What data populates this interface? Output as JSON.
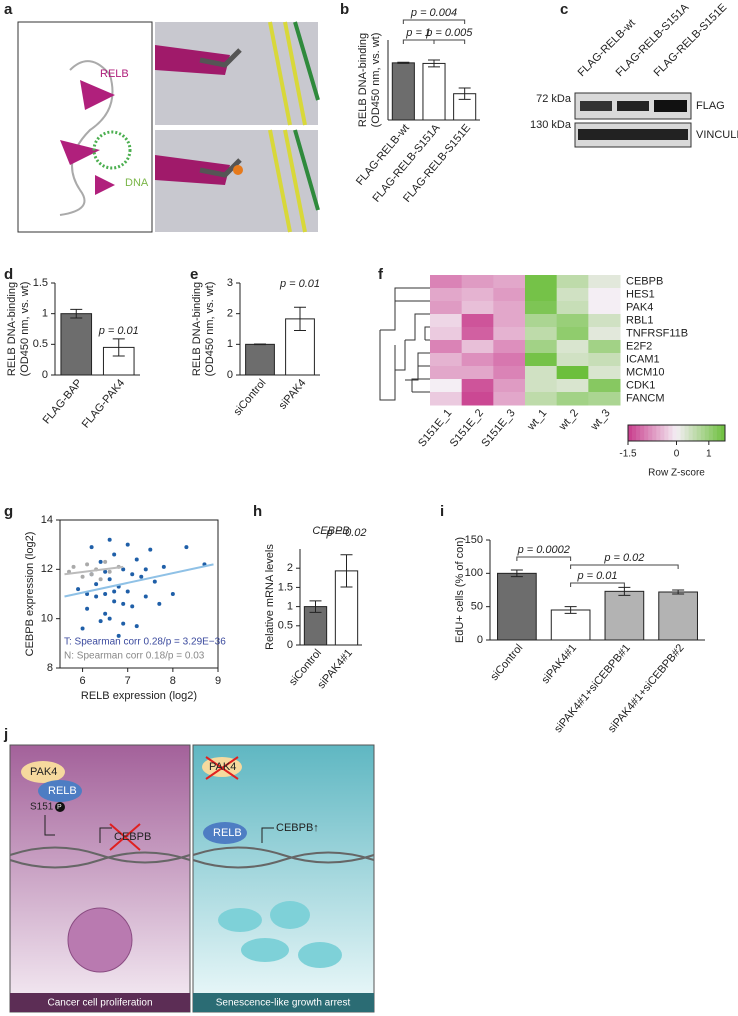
{
  "panels": [
    "a",
    "b",
    "c",
    "d",
    "e",
    "f",
    "g",
    "h",
    "i",
    "j"
  ],
  "panel_a": {
    "labels": [
      "RELB",
      "DNA"
    ]
  },
  "panel_c": {
    "lanes": [
      "FLAG-RELB-wt",
      "FLAG-RELB-S151A",
      "FLAG-RELB-S151E"
    ],
    "markers": [
      "72 kDa",
      "130 kDa"
    ],
    "bands": [
      "FLAG",
      "VINCULIN"
    ]
  },
  "panel_j": {
    "left": {
      "labels": [
        "PAK4",
        "RELB",
        "S151",
        "P",
        "CEBPB"
      ],
      "caption": "Cancer cell proliferation"
    },
    "right": {
      "labels": [
        "PAK4",
        "RELB",
        "CEBPB↑"
      ],
      "caption": "Senescence-like growth arrest"
    }
  },
  "chart_data": [
    {
      "type": "bar",
      "ylabel": [
        "RELB DNA-binding",
        "(OD450 nm, vs. wt)"
      ],
      "categories": [
        "FLAG-RELB-wt",
        "FLAG-RELB-S151A",
        "FLAG-RELB-S151E"
      ],
      "values": [
        1,
        0.99,
        0.46
      ],
      "errors": [
        0.01,
        0.06,
        0.1
      ],
      "colors": [
        "#6d6d6d",
        "#ffffff",
        "#ffffff"
      ],
      "ylim": [
        0,
        1.4
      ],
      "annotations": [
        "p = 0.004",
        "p = 1",
        "p = 0.005"
      ]
    },
    {
      "type": "bar",
      "ylabel": [
        "RELB DNA-binding",
        "(OD450 nm, vs. wt)"
      ],
      "categories": [
        "FLAG-BAP",
        "FLAG-PAK4"
      ],
      "values": [
        1,
        0.45
      ],
      "errors": [
        0.07,
        0.14
      ],
      "colors": [
        "#6d6d6d",
        "#ffffff"
      ],
      "ylim": [
        0,
        1.5
      ],
      "yticks": [
        0,
        0.5,
        1,
        1.5
      ],
      "annotations": [
        "p = 0.01"
      ]
    },
    {
      "type": "bar",
      "ylabel": [
        "RELB DNA-binding",
        "(OD450 nm, vs. wt)"
      ],
      "categories": [
        "siControl",
        "siPAK4"
      ],
      "values": [
        1,
        1.83
      ],
      "errors": [
        0.01,
        0.38
      ],
      "colors": [
        "#6d6d6d",
        "#ffffff"
      ],
      "ylim": [
        0,
        3
      ],
      "yticks": [
        0,
        1,
        2,
        3
      ],
      "annotations": [
        "p = 0.01"
      ]
    },
    {
      "type": "heatmap",
      "rows": [
        "CEBPB",
        "HES1",
        "PAK4",
        "RBL1",
        "TNFRSF11B",
        "E2F2",
        "ICAM1",
        "MCM10",
        "CDK1",
        "FANCM"
      ],
      "columns": [
        "S151E_1",
        "S151E_2",
        "S151E_3",
        "wt_1",
        "wt_2",
        "wt_3"
      ],
      "values": [
        [
          -0.9,
          -0.7,
          -0.6,
          1.4,
          0.6,
          0.2
        ],
        [
          -0.6,
          -0.5,
          -0.7,
          1.4,
          0.4,
          0.0
        ],
        [
          -0.7,
          -0.4,
          -0.6,
          1.3,
          0.5,
          0.0
        ],
        [
          -0.2,
          -1.3,
          -0.6,
          0.8,
          1.0,
          0.4
        ],
        [
          -0.3,
          -1.2,
          -0.5,
          0.6,
          1.1,
          0.2
        ],
        [
          -0.9,
          -0.4,
          -0.8,
          0.9,
          0.3,
          0.9
        ],
        [
          -0.5,
          -0.8,
          -1.0,
          1.4,
          0.4,
          0.5
        ],
        [
          -0.6,
          -0.6,
          -0.9,
          0.4,
          1.5,
          0.3
        ],
        [
          0.0,
          -1.3,
          -0.7,
          0.4,
          0.3,
          1.2
        ],
        [
          -0.3,
          -1.4,
          -0.6,
          0.6,
          0.9,
          0.8
        ]
      ],
      "colorbar": {
        "label": "Row Z-score",
        "lim": [
          -1.5,
          1.5
        ],
        "ticks": [
          -1.5,
          0,
          1
        ]
      }
    },
    {
      "type": "scatter",
      "xlabel": "RELB expression (log2)",
      "ylabel": "CEBPB expression (log2)",
      "xlim": [
        5.5,
        9
      ],
      "xticks": [
        6,
        7,
        8,
        9
      ],
      "ylim": [
        8,
        14
      ],
      "yticks": [
        8,
        10,
        12,
        14
      ],
      "series": [
        {
          "color": "#1f5fa8",
          "x": [
            5.9,
            6.1,
            6.2,
            6.3,
            6.4,
            6.5,
            6.5,
            6.6,
            6.7,
            6.7,
            6.8,
            6.9,
            6.9,
            7.0,
            7.1,
            7.2,
            7.3,
            7.4,
            7.5,
            7.6,
            7.8,
            8.0,
            8.3,
            8.7,
            6.0,
            6.2,
            6.4,
            6.6,
            6.8,
            7.0,
            7.2,
            7.4,
            6.3,
            6.5,
            6.7,
            6.9,
            7.1,
            6.1,
            6.6,
            7.7
          ],
          "y": [
            11.2,
            10.4,
            11.8,
            10.9,
            12.3,
            11.0,
            10.2,
            11.6,
            12.6,
            10.7,
            11.3,
            9.8,
            12.0,
            11.1,
            10.5,
            12.4,
            11.7,
            10.9,
            12.8,
            11.5,
            12.1,
            11.0,
            12.9,
            12.2,
            9.6,
            12.9,
            9.9,
            13.2,
            9.3,
            13.0,
            9.7,
            12.0,
            11.4,
            11.9,
            11.1,
            10.6,
            11.8,
            11.0,
            10.0,
            10.6
          ]
        },
        {
          "color": "#aaaaaa",
          "x": [
            5.7,
            5.8,
            6.0,
            6.1,
            6.2,
            6.3,
            6.4,
            6.5,
            6.6,
            6.8
          ],
          "y": [
            11.9,
            12.1,
            11.7,
            12.2,
            11.8,
            12.0,
            11.6,
            12.3,
            11.9,
            12.1
          ]
        }
      ],
      "fits": [
        {
          "color": "#8fc1e6",
          "x": [
            5.6,
            8.9
          ],
          "y": [
            10.9,
            12.2
          ]
        },
        {
          "color": "#bbbbbb",
          "x": [
            5.6,
            6.9
          ],
          "y": [
            11.8,
            12.1
          ]
        }
      ],
      "annotations": [
        "T: Spearman corr 0.28/p = 3.29E−36",
        "N: Spearman corr 0.18/p = 0.03"
      ],
      "annotation_colors": [
        "#3b4a9e",
        "#888888"
      ]
    },
    {
      "type": "bar",
      "title": "CEBPB",
      "ylabel": [
        "Relative mRNA levels"
      ],
      "categories": [
        "siControl",
        "siPAK4#1"
      ],
      "values": [
        1,
        1.93
      ],
      "errors": [
        0.15,
        0.42
      ],
      "colors": [
        "#6d6d6d",
        "#ffffff"
      ],
      "ylim": [
        0,
        2.5
      ],
      "yticks": [
        0,
        0.5,
        1,
        1.5,
        2
      ],
      "annotations": [
        "p = 0.02"
      ]
    },
    {
      "type": "bar",
      "ylabel": [
        "EdU+ cells (% of con)"
      ],
      "categories": [
        "siControl",
        "siPAK4#1",
        "siPAK4#1+siCEBPB#1",
        "siPAK4#1+siCEBPB#2"
      ],
      "values": [
        100,
        45,
        73,
        72
      ],
      "errors": [
        5,
        5,
        6,
        3
      ],
      "colors": [
        "#6d6d6d",
        "#ffffff",
        "#b3b3b3",
        "#b3b3b3"
      ],
      "ylim": [
        0,
        150
      ],
      "yticks": [
        0,
        50,
        100,
        150
      ],
      "annotations": [
        "p = 0.0002",
        "p = 0.01",
        "p = 0.02"
      ]
    }
  ]
}
